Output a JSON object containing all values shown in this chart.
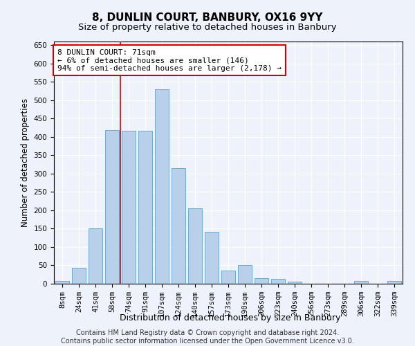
{
  "title_line1": "8, DUNLIN COURT, BANBURY, OX16 9YY",
  "title_line2": "Size of property relative to detached houses in Banbury",
  "xlabel": "Distribution of detached houses by size in Banbury",
  "ylabel": "Number of detached properties",
  "categories": [
    "8sqm",
    "24sqm",
    "41sqm",
    "58sqm",
    "74sqm",
    "91sqm",
    "107sqm",
    "124sqm",
    "140sqm",
    "157sqm",
    "173sqm",
    "190sqm",
    "206sqm",
    "223sqm",
    "240sqm",
    "256sqm",
    "273sqm",
    "289sqm",
    "306sqm",
    "322sqm",
    "339sqm"
  ],
  "values": [
    8,
    44,
    150,
    418,
    416,
    417,
    530,
    315,
    205,
    142,
    35,
    50,
    15,
    13,
    5,
    0,
    0,
    0,
    7,
    0,
    7
  ],
  "bar_color": "#b8d0ea",
  "bar_edge_color": "#6fa8d0",
  "vline_x": 4.0,
  "vline_color": "#cc0000",
  "annotation_text": "8 DUNLIN COURT: 71sqm\n← 6% of detached houses are smaller (146)\n94% of semi-detached houses are larger (2,178) →",
  "annotation_box_color": "#ffffff",
  "annotation_box_edge": "#cc0000",
  "ylim": [
    0,
    660
  ],
  "yticks": [
    0,
    50,
    100,
    150,
    200,
    250,
    300,
    350,
    400,
    450,
    500,
    550,
    600,
    650
  ],
  "footnote1": "Contains HM Land Registry data © Crown copyright and database right 2024.",
  "footnote2": "Contains public sector information licensed under the Open Government Licence v3.0.",
  "background_color": "#eef2fb",
  "grid_color": "#ffffff",
  "title_fontsize": 11,
  "subtitle_fontsize": 9.5,
  "axis_label_fontsize": 8.5,
  "tick_fontsize": 7.5,
  "annotation_fontsize": 8,
  "footnote_fontsize": 7
}
